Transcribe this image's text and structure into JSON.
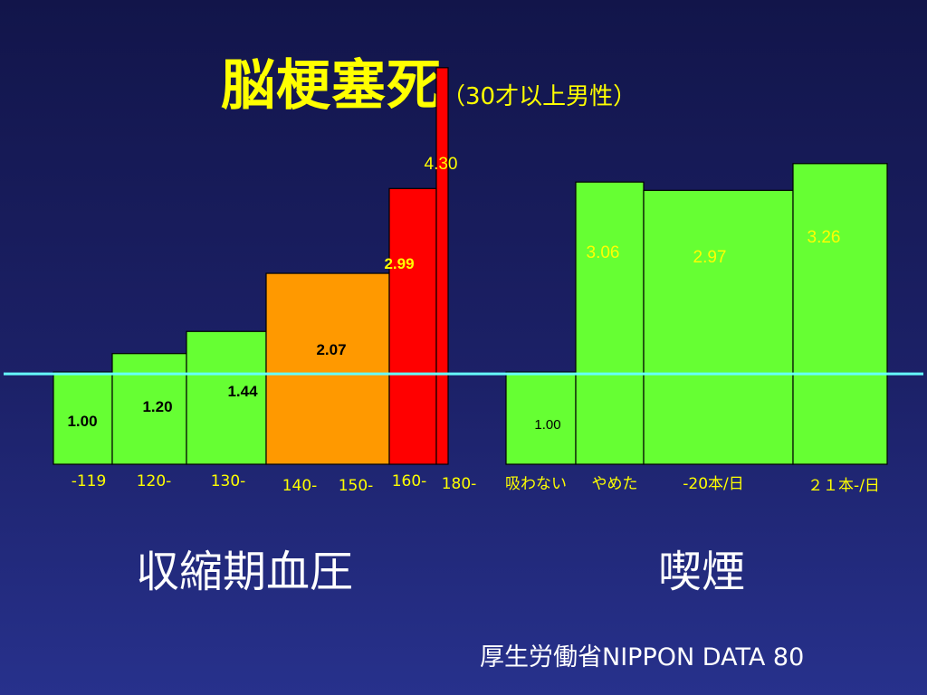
{
  "title": {
    "main": "脳梗塞死",
    "sub": "（30才以上男性）"
  },
  "colors": {
    "background": "#1c2168",
    "title": "#ffff00",
    "green": "#66ff33",
    "orange": "#ff9900",
    "red": "#ff0000",
    "reference_line": "#66ffff"
  },
  "chart_data": [
    {
      "type": "bar",
      "group_label": "収縮期血圧",
      "reference_value": 1.0,
      "categories": [
        "-119",
        "120-",
        "130-",
        "140-",
        "150-",
        "160-",
        "180-"
      ],
      "bars": [
        {
          "label": "-119",
          "value": 1.0,
          "value_text": "1.00",
          "color": "green"
        },
        {
          "label": "120-",
          "value": 1.2,
          "value_text": "1.20",
          "color": "green"
        },
        {
          "label": "130-",
          "value": 1.44,
          "value_text": "1.44",
          "color": "green"
        },
        {
          "label": "140- 150-",
          "value": 2.07,
          "value_text": "2.07",
          "color": "orange"
        },
        {
          "label": "160-",
          "value": 2.99,
          "value_text": "2.99",
          "color": "red"
        },
        {
          "label": "180-",
          "value": 4.3,
          "value_text": "4.30",
          "color": "red"
        }
      ]
    },
    {
      "type": "bar",
      "group_label": "喫煙",
      "reference_value": 1.0,
      "categories": [
        "吸わない",
        "やめた",
        "-20本/日",
        "２１本-/日"
      ],
      "bars": [
        {
          "label": "吸わない",
          "value": 1.0,
          "value_text": "1.00",
          "color": "green"
        },
        {
          "label": "やめた",
          "value": 3.06,
          "value_text": "3.06",
          "color": "green"
        },
        {
          "label": "-20本/日",
          "value": 2.97,
          "value_text": "2.97",
          "color": "green"
        },
        {
          "label": "２１本-/日",
          "value": 3.26,
          "value_text": "3.26",
          "color": "green"
        }
      ]
    }
  ],
  "source": "厚生労働省NIPPON DATA 80"
}
